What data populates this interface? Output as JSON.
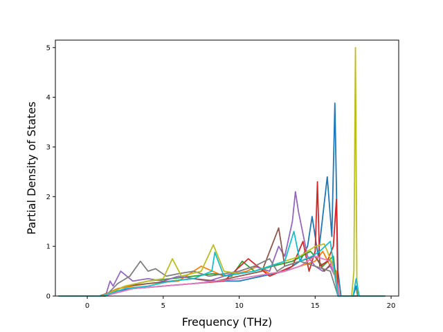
{
  "chart_data": {
    "type": "line",
    "title": "",
    "xlabel": "Frequency (THz)",
    "ylabel": "Partial Density of States",
    "xlim": [
      -2.1,
      20.5
    ],
    "ylim": [
      0,
      5.15
    ],
    "xticks": [
      0,
      5,
      10,
      15,
      20
    ],
    "yticks": [
      0,
      1,
      2,
      3,
      4,
      5
    ],
    "grid": false,
    "legend": "none",
    "colors": [
      "#1f77b4",
      "#ff7f0e",
      "#2ca02c",
      "#d62728",
      "#9467bd",
      "#8c564b",
      "#e377c2",
      "#7f7f7f",
      "#bcbd22",
      "#17becf"
    ],
    "series": [
      {
        "color": "#1f77b4",
        "x": [
          -1.9,
          0.8,
          1.5,
          3,
          5,
          7,
          8.5,
          10,
          11.5,
          13,
          14,
          14.5,
          14.8,
          15.2,
          15.8,
          16.1,
          16.3,
          16.5,
          16.7,
          17.5,
          17.6,
          17.7,
          17.8,
          19.6
        ],
        "y": [
          0,
          0,
          0.08,
          0.15,
          0.2,
          0.25,
          0.3,
          0.3,
          0.4,
          0.5,
          0.7,
          1.0,
          1.6,
          0.8,
          2.4,
          1.2,
          3.88,
          0.5,
          0,
          0,
          0.1,
          0.2,
          0,
          0
        ]
      },
      {
        "color": "#ff7f0e",
        "x": [
          -1.9,
          0.9,
          2,
          4,
          6,
          7.5,
          9,
          10.5,
          11.2,
          12,
          13,
          14,
          15,
          15.5,
          16,
          16.4,
          16.6,
          19.6
        ],
        "y": [
          0,
          0,
          0.15,
          0.25,
          0.3,
          0.6,
          0.4,
          0.5,
          0.6,
          0.45,
          0.5,
          0.6,
          0.7,
          0.9,
          0.6,
          0.5,
          0,
          0
        ]
      },
      {
        "color": "#2ca02c",
        "x": [
          -1.9,
          1,
          2.5,
          4,
          5.5,
          7,
          8.3,
          9.5,
          10.2,
          11,
          12.2,
          13.5,
          14.7,
          15.5,
          16.2,
          16.5,
          19.6
        ],
        "y": [
          0,
          0,
          0.2,
          0.3,
          0.35,
          0.4,
          0.45,
          0.4,
          0.7,
          0.5,
          0.6,
          0.7,
          0.9,
          0.6,
          0.8,
          0,
          0
        ]
      },
      {
        "color": "#d62728",
        "x": [
          -1.9,
          1.1,
          3,
          5,
          7,
          9,
          10.6,
          12,
          13.5,
          14.2,
          14.6,
          15,
          15.15,
          15.3,
          15.8,
          16.2,
          16.4,
          16.5,
          19.6
        ],
        "y": [
          0,
          0,
          0.15,
          0.2,
          0.25,
          0.3,
          0.75,
          0.4,
          0.6,
          1.1,
          0.5,
          0.9,
          2.3,
          0.6,
          0.7,
          1.0,
          1.95,
          0,
          0
        ]
      },
      {
        "color": "#9467bd",
        "x": [
          -1.9,
          1.2,
          1.5,
          1.7,
          2.2,
          3,
          4,
          5,
          6,
          7,
          8,
          9,
          10,
          11,
          12,
          12.6,
          13,
          13.5,
          13.7,
          13.9,
          14.5,
          15,
          15.5,
          16,
          16.3,
          16.5,
          19.6
        ],
        "y": [
          0,
          0,
          0.3,
          0.2,
          0.5,
          0.3,
          0.35,
          0.3,
          0.4,
          0.35,
          0.3,
          0.4,
          0.5,
          0.6,
          0.5,
          1.0,
          0.8,
          1.5,
          2.1,
          1.7,
          0.8,
          0.6,
          0.5,
          0.6,
          0.4,
          0,
          0
        ]
      },
      {
        "color": "#8c564b",
        "x": [
          -1.9,
          1,
          2.5,
          4,
          5.5,
          7,
          8.5,
          10,
          11.5,
          12.6,
          13,
          14,
          15,
          15.6,
          16.2,
          16.5,
          19.6
        ],
        "y": [
          0,
          0,
          0.2,
          0.25,
          0.3,
          0.35,
          0.3,
          0.4,
          0.5,
          1.37,
          0.6,
          0.7,
          0.8,
          0.5,
          0.7,
          0,
          0
        ]
      },
      {
        "color": "#e377c2",
        "x": [
          -1.9,
          1.1,
          3,
          5,
          7,
          8.5,
          10,
          11,
          12,
          13,
          14,
          15,
          16,
          16.4,
          16.6,
          19.6
        ],
        "y": [
          0,
          0,
          0.15,
          0.2,
          0.25,
          0.3,
          0.35,
          0.4,
          0.45,
          0.5,
          0.6,
          0.8,
          0.7,
          0.3,
          0,
          0
        ]
      },
      {
        "color": "#7f7f7f",
        "x": [
          -1.9,
          1.2,
          2,
          2.8,
          3.5,
          4,
          4.5,
          5.2,
          6,
          7,
          8,
          9,
          10,
          11,
          12,
          12.5,
          13,
          14,
          15,
          16,
          16.5,
          19.6
        ],
        "y": [
          0,
          0,
          0.25,
          0.4,
          0.7,
          0.5,
          0.55,
          0.4,
          0.45,
          0.5,
          0.4,
          0.45,
          0.5,
          0.6,
          0.75,
          0.5,
          0.6,
          0.7,
          0.6,
          0.5,
          0,
          0
        ]
      },
      {
        "color": "#bcbd22",
        "x": [
          -1.9,
          1,
          2.5,
          4,
          5,
          5.6,
          6.2,
          7.5,
          8.3,
          9,
          10,
          11,
          12,
          13,
          14,
          15,
          15.6,
          16.2,
          16.5,
          17.4,
          17.55,
          17.65,
          17.75,
          17.85,
          18,
          19.6
        ],
        "y": [
          0,
          0,
          0.2,
          0.3,
          0.35,
          0.75,
          0.4,
          0.5,
          1.03,
          0.5,
          0.45,
          0.5,
          0.6,
          0.7,
          0.8,
          1.0,
          1.05,
          0.6,
          0,
          0,
          0.5,
          5.0,
          0.3,
          0,
          0,
          0
        ]
      },
      {
        "color": "#17becf",
        "x": [
          -1.9,
          1,
          2.5,
          4,
          5.5,
          7,
          8.2,
          8.4,
          9,
          10,
          11,
          12,
          13,
          13.6,
          14,
          14.8,
          15.3,
          16,
          16.5,
          17.5,
          17.7,
          17.9,
          19.6
        ],
        "y": [
          0,
          0,
          0.15,
          0.2,
          0.3,
          0.35,
          0.5,
          0.88,
          0.4,
          0.45,
          0.5,
          0.6,
          0.7,
          1.3,
          0.7,
          0.8,
          0.9,
          1.1,
          0,
          0,
          0.35,
          0,
          0
        ]
      }
    ]
  }
}
